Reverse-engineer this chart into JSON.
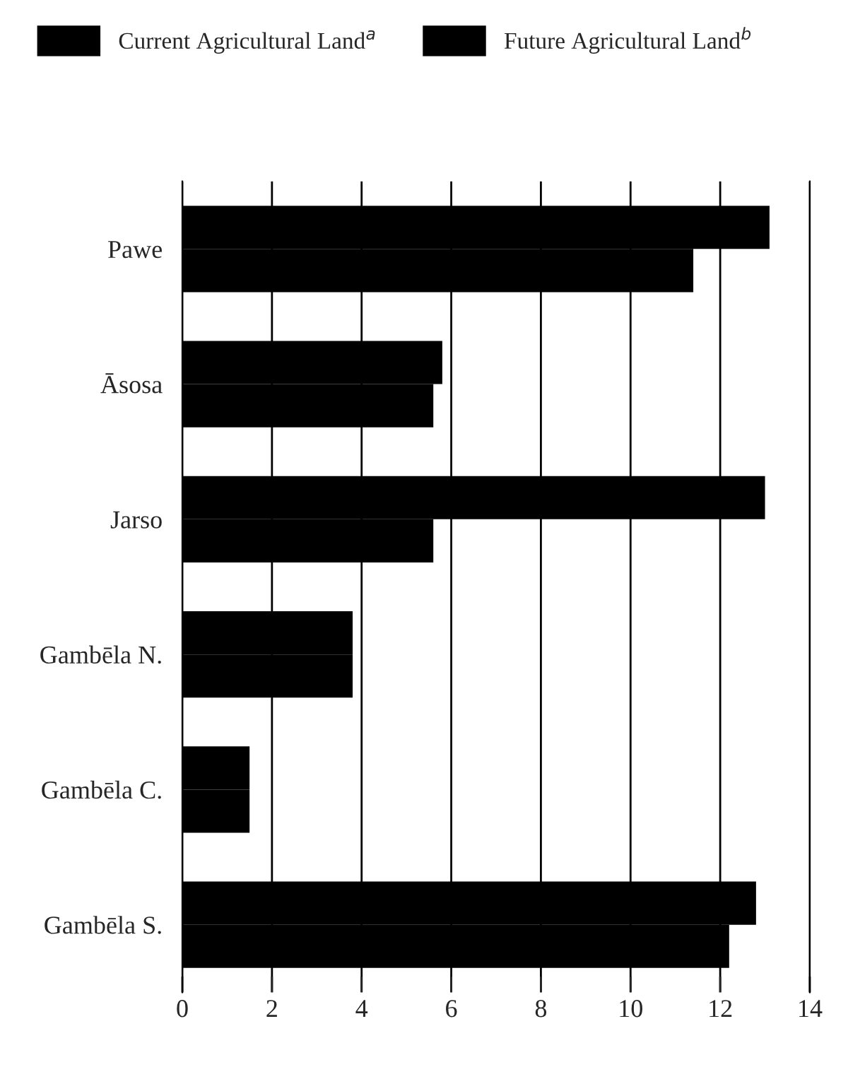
{
  "chart_data": {
    "type": "bar",
    "orientation": "horizontal",
    "categories": [
      "Pawe",
      "Āsosa",
      "Jarso",
      "Gambēla N.",
      "Gambēla C.",
      "Gambēla S."
    ],
    "series": [
      {
        "name": "Current Agricultural Land$^{a}$",
        "color": "#000000",
        "values": [
          13.1,
          5.8,
          13.0,
          3.8,
          1.5,
          12.8
        ]
      },
      {
        "name": "Future Agricultural Land$^{b}$",
        "color": "#000000",
        "values": [
          11.4,
          5.6,
          5.6,
          3.8,
          1.5,
          12.2
        ]
      }
    ],
    "xlim": [
      0,
      14
    ],
    "xticks": [
      0,
      2,
      4,
      6,
      8,
      10,
      12,
      14
    ],
    "grid": "x",
    "legend": "top"
  }
}
